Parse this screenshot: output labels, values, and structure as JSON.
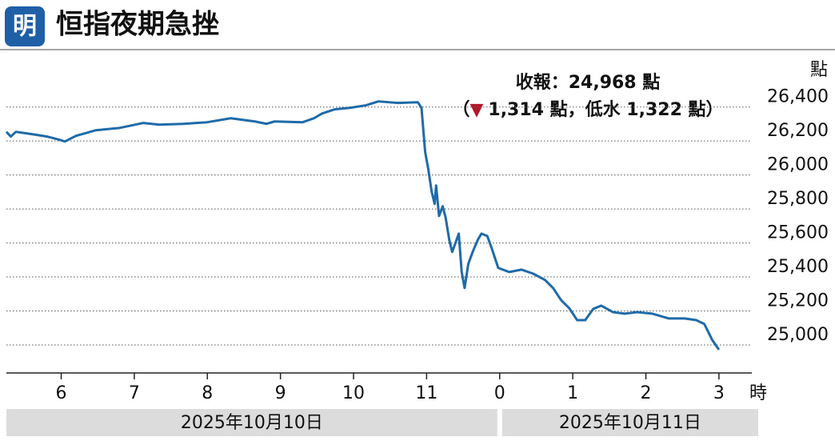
{
  "chart_data": {
    "type": "line",
    "logo": "明",
    "title": "恒指夜期急挫",
    "y_unit": "點",
    "x_unit": "時",
    "annotation": {
      "close": "收報：24,968 點",
      "open": "（",
      "arrow": "▼",
      "change": "1,314 點，低水 1,322 點）"
    },
    "date_labels": [
      "2025年10月10日",
      "2025年10月11日"
    ],
    "color": "#1f6aa8",
    "arrow_color": "#b3172c",
    "grid": true,
    "x": [
      17.25,
      17.31,
      17.38,
      17.6,
      17.81,
      17.98,
      18.05,
      18.2,
      18.47,
      18.8,
      19.12,
      19.34,
      19.67,
      19.99,
      20.32,
      20.65,
      20.81,
      20.92,
      21.3,
      21.46,
      21.57,
      21.74,
      21.95,
      22.17,
      22.34,
      22.61,
      22.88,
      22.93,
      22.98,
      23.02,
      23.07,
      23.11,
      23.13,
      23.17,
      23.22,
      23.26,
      23.31,
      23.35,
      23.39,
      23.44,
      23.48,
      23.52,
      23.57,
      23.63,
      23.7,
      23.75,
      23.83,
      23.89,
      23.98,
      24.13,
      24.3,
      24.46,
      24.62,
      24.73,
      24.84,
      24.95,
      25.06,
      25.17,
      25.28,
      25.39,
      25.55,
      25.71,
      25.88,
      26.09,
      26.31,
      26.53,
      26.69,
      26.8,
      26.91,
      27.0
    ],
    "values": [
      26254,
      26226,
      26254,
      26240,
      26226,
      26207,
      26197,
      26230,
      26263,
      26277,
      26306,
      26296,
      26301,
      26310,
      26334,
      26315,
      26301,
      26315,
      26310,
      26334,
      26362,
      26386,
      26395,
      26410,
      26433,
      26424,
      26428,
      26395,
      26136,
      26042,
      25900,
      25830,
      25938,
      25759,
      25816,
      25750,
      25618,
      25547,
      25594,
      25655,
      25429,
      25335,
      25476,
      25547,
      25618,
      25655,
      25641,
      25570,
      25453,
      25429,
      25443,
      25419,
      25382,
      25335,
      25264,
      25217,
      25146,
      25146,
      25212,
      25231,
      25193,
      25184,
      25193,
      25184,
      25156,
      25156,
      25146,
      25123,
      25028,
      24972
    ],
    "xlim": [
      17.25,
      27.45
    ],
    "xticks": [
      {
        "value": 18,
        "label": "6"
      },
      {
        "value": 19,
        "label": "7"
      },
      {
        "value": 20,
        "label": "8"
      },
      {
        "value": 21,
        "label": "9"
      },
      {
        "value": 22,
        "label": "10"
      },
      {
        "value": 23,
        "label": "11"
      },
      {
        "value": 24,
        "label": "0"
      },
      {
        "value": 25,
        "label": "1"
      },
      {
        "value": 26,
        "label": "2"
      },
      {
        "value": 27,
        "label": "3"
      }
    ],
    "ylim": [
      24835,
      26700
    ],
    "yticks": [
      {
        "value": 25000,
        "label": "25,000"
      },
      {
        "value": 25200,
        "label": "25,200"
      },
      {
        "value": 25400,
        "label": "25,400"
      },
      {
        "value": 25600,
        "label": "25,600"
      },
      {
        "value": 25800,
        "label": "25,800"
      },
      {
        "value": 26000,
        "label": "26,000"
      },
      {
        "value": 26200,
        "label": "26,200"
      },
      {
        "value": 26400,
        "label": "26,400"
      }
    ]
  }
}
